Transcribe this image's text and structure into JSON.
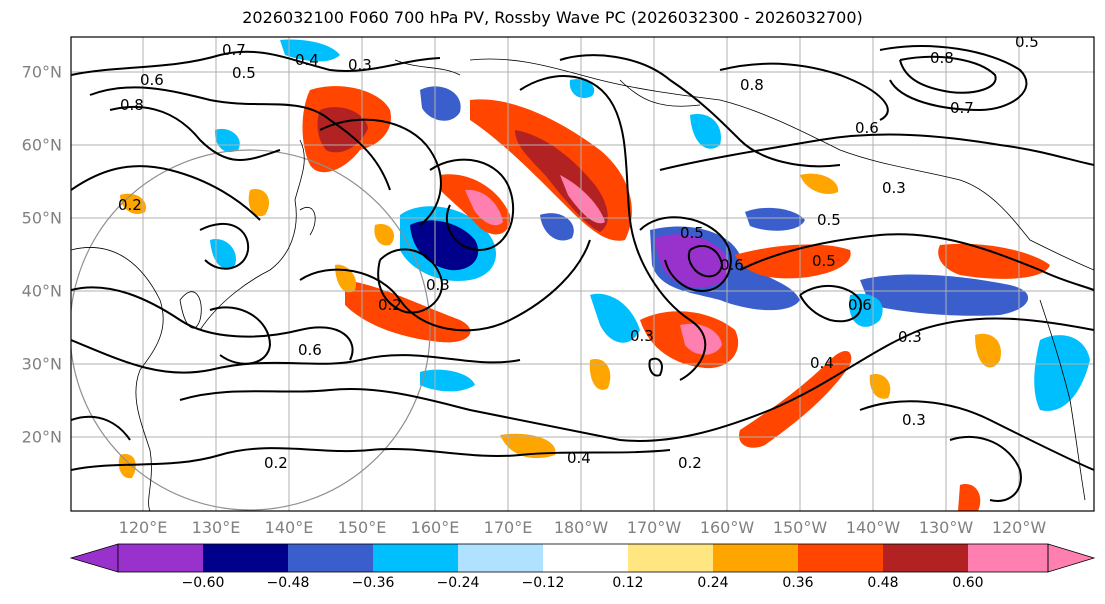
{
  "title": "2026032100 F060 700 hPa PV, Rossby Wave PC (2026032300 - 2026032700)",
  "lat_labels": [
    "70°N",
    "60°N",
    "50°N",
    "40°N",
    "30°N",
    "20°N"
  ],
  "lon_labels": [
    "120°E",
    "130°E",
    "140°E",
    "150°E",
    "160°E",
    "170°E",
    "180°W",
    "170°W",
    "160°W",
    "150°W",
    "140°W",
    "130°W",
    "120°W"
  ],
  "colorbar": {
    "ticks": [
      "−0.60",
      "−0.48",
      "−0.36",
      "−0.24",
      "−0.12",
      "0.12",
      "0.24",
      "0.36",
      "0.48",
      "0.60"
    ],
    "colors": [
      "#9932cc",
      "#00008b",
      "#3a5fcd",
      "#00bfff",
      "#b0e2ff",
      "#ffffff",
      "#ffe680",
      "#ffa500",
      "#ff4500",
      "#b22222",
      "#ff80b0"
    ]
  },
  "contour_labels": [
    "0.7",
    "0.5",
    "0.4",
    "0.3",
    "0.8",
    "0.6",
    "0.2",
    "0.8",
    "0.7",
    "0.6",
    "0.5",
    "0.3",
    "0.5",
    "0.6",
    "0.4",
    "0.3",
    "0.2",
    "0.4",
    "0.2",
    "0.3",
    "0.6",
    "0.8",
    "0.5",
    "0.3",
    "0.2",
    "0.3",
    "0.5",
    "0.6"
  ]
}
